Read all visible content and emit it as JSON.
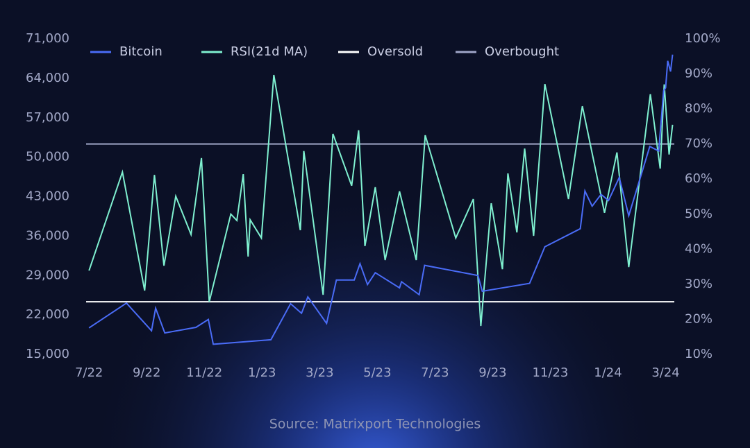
{
  "chart_data": {
    "type": "line",
    "source": "Source: Matrixport Technologies",
    "xlim": [
      -0.1,
      20.3
    ],
    "xticks": [
      {
        "value": 0,
        "label": "7/22"
      },
      {
        "value": 2,
        "label": "9/22"
      },
      {
        "value": 4,
        "label": "11/22"
      },
      {
        "value": 6,
        "label": "1/23"
      },
      {
        "value": 8,
        "label": "3/23"
      },
      {
        "value": 10,
        "label": "5/23"
      },
      {
        "value": 12,
        "label": "7/23"
      },
      {
        "value": 14,
        "label": "9/23"
      },
      {
        "value": 16,
        "label": "11/23"
      },
      {
        "value": 18,
        "label": "1/24"
      },
      {
        "value": 20,
        "label": "3/24"
      }
    ],
    "ylim": [
      15000,
      71000
    ],
    "yticks": [
      {
        "value": 15000,
        "label": "15,000"
      },
      {
        "value": 22000,
        "label": "22,000"
      },
      {
        "value": 29000,
        "label": "29,000"
      },
      {
        "value": 36000,
        "label": "36,000"
      },
      {
        "value": 43000,
        "label": "43,000"
      },
      {
        "value": 50000,
        "label": "50,000"
      },
      {
        "value": 57000,
        "label": "57,000"
      },
      {
        "value": 64000,
        "label": "64,000"
      },
      {
        "value": 71000,
        "label": "71,000"
      }
    ],
    "y2lim": [
      10,
      100
    ],
    "y2ticks": [
      {
        "value": 10,
        "label": "10%"
      },
      {
        "value": 20,
        "label": "20%"
      },
      {
        "value": 30,
        "label": "30%"
      },
      {
        "value": 40,
        "label": "40%"
      },
      {
        "value": 50,
        "label": "50%"
      },
      {
        "value": 60,
        "label": "60%"
      },
      {
        "value": 70,
        "label": "70%"
      },
      {
        "value": 80,
        "label": "80%"
      },
      {
        "value": 90,
        "label": "90%"
      },
      {
        "value": 100,
        "label": "100%"
      }
    ],
    "legend": "top",
    "series": [
      {
        "name": "Bitcoin",
        "color": "#4a6cf7",
        "axis": "y",
        "x": [
          0,
          1.3,
          2.17,
          2.31,
          2.63,
          3.71,
          4.14,
          4.31,
          6.31,
          6.99,
          7.37,
          7.59,
          8.24,
          8.58,
          9.2,
          9.4,
          9.66,
          9.93,
          10.77,
          10.84,
          11.45,
          11.64,
          13.49,
          13.64,
          15.28,
          15.81,
          17.04,
          17.2,
          17.45,
          17.76,
          18.02,
          18.39,
          18.72,
          19.45,
          19.76,
          19.93,
          20.0,
          20.07,
          20.17,
          20.24
        ],
        "values": [
          19700,
          24100,
          19200,
          23200,
          18800,
          19800,
          21200,
          16800,
          17600,
          24000,
          22300,
          25200,
          20500,
          28200,
          28200,
          31100,
          27400,
          29500,
          26800,
          27900,
          25600,
          30800,
          29000,
          26200,
          27600,
          34100,
          37300,
          44000,
          41300,
          43400,
          42300,
          46400,
          39600,
          51900,
          51100,
          61800,
          62300,
          67100,
          65200,
          68200
        ]
      },
      {
        "name": "RSI(21d MA)",
        "color": "#7ff0d0",
        "axis": "y2",
        "x": [
          0,
          1.16,
          1.93,
          2.27,
          2.6,
          3.01,
          3.54,
          3.9,
          4.17,
          4.92,
          5.13,
          5.35,
          5.52,
          5.59,
          5.98,
          6.41,
          7.33,
          7.45,
          8.12,
          8.46,
          9.11,
          9.35,
          9.57,
          9.93,
          10.27,
          10.77,
          11.35,
          11.66,
          12.72,
          13.33,
          13.59,
          13.95,
          14.34,
          14.53,
          14.84,
          15.11,
          15.42,
          15.81,
          16.63,
          17.11,
          17.88,
          18.31,
          18.72,
          19.47,
          19.81,
          19.95,
          20.12,
          20.24
        ],
        "values": [
          33.9,
          62.0,
          28.2,
          61.2,
          35.3,
          55.1,
          44.2,
          66.0,
          25.0,
          50.0,
          48.2,
          61.4,
          37.9,
          48.4,
          43.2,
          89.7,
          45.4,
          68.0,
          27.0,
          72.9,
          58.1,
          73.9,
          40.9,
          57.7,
          36.9,
          56.5,
          36.9,
          72.5,
          43.2,
          54.3,
          18.1,
          53.1,
          34.3,
          61.6,
          44.8,
          68.7,
          43.8,
          87.1,
          54.3,
          80.8,
          50.4,
          67.6,
          34.9,
          84.2,
          63.0,
          87.0,
          67.0,
          75.5
        ]
      }
    ],
    "reference_lines": [
      {
        "name": "Oversold",
        "color": "#ffffff",
        "axis": "y2",
        "value": 25
      },
      {
        "name": "Overbought",
        "color": "#a0a6c8",
        "axis": "y2",
        "value": 70
      }
    ]
  }
}
